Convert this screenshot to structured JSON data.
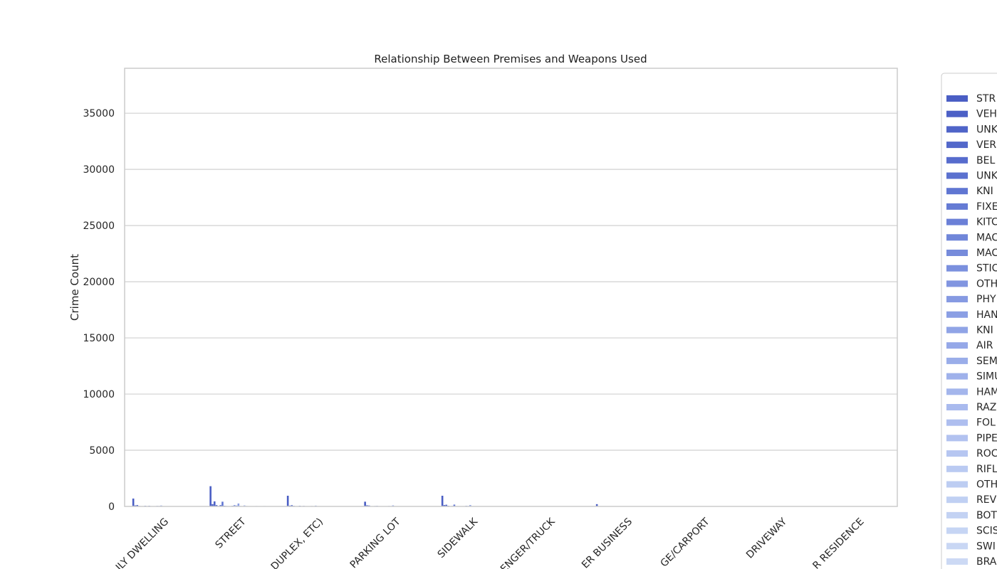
{
  "chart_data": {
    "type": "bar",
    "title": "Relationship Between Premises and Weapons Used",
    "xlabel": "",
    "ylabel": "Crime Count",
    "ylim": [
      0,
      39000
    ],
    "yticks": [
      0,
      5000,
      10000,
      15000,
      20000,
      25000,
      30000,
      35000
    ],
    "grid": true,
    "legend_placement": "right, clipped at page edge",
    "categories": [
      "ILY DWELLING",
      "STREET",
      "DUPLEX, ETC)",
      "PARKING LOT",
      "SIDEWALK",
      "ENGER/TRUCK",
      "ER BUSINESS",
      "GE/CARPORT",
      "DRIVEWAY",
      "R RESIDENCE"
    ],
    "series": [
      {
        "name": "STR",
        "color": "#4a5ec4",
        "values": [
          700,
          1800,
          950,
          420,
          950,
          30,
          200,
          20,
          15,
          15
        ]
      },
      {
        "name": "VEH",
        "color": "#4c60c6",
        "values": [
          90,
          200,
          70,
          100,
          120,
          20,
          20,
          5,
          10,
          5
        ]
      },
      {
        "name": "UNK",
        "color": "#4f64c8",
        "values": [
          120,
          450,
          110,
          80,
          150,
          15,
          20,
          5,
          5,
          5
        ]
      },
      {
        "name": "VER",
        "color": "#5368ca",
        "values": [
          40,
          120,
          50,
          30,
          60,
          10,
          10,
          5,
          5,
          5
        ]
      },
      {
        "name": "BEL",
        "color": "#576ccd",
        "values": [
          20,
          40,
          15,
          10,
          15,
          5,
          5,
          2,
          2,
          2
        ]
      },
      {
        "name": "UNK",
        "color": "#5b71cf",
        "values": [
          30,
          120,
          30,
          40,
          40,
          10,
          10,
          3,
          3,
          3
        ]
      },
      {
        "name": "KNI",
        "color": "#6076d2",
        "values": [
          60,
          420,
          60,
          50,
          160,
          10,
          20,
          5,
          5,
          5
        ]
      },
      {
        "name": "FIXE",
        "color": "#657bd4",
        "values": [
          20,
          60,
          20,
          15,
          30,
          5,
          5,
          2,
          2,
          2
        ]
      },
      {
        "name": "KITC",
        "color": "#6b80d7",
        "values": [
          60,
          40,
          50,
          10,
          20,
          3,
          5,
          2,
          2,
          3
        ]
      },
      {
        "name": "MAC",
        "color": "#7086d9",
        "values": [
          10,
          30,
          10,
          10,
          10,
          3,
          3,
          1,
          1,
          1
        ]
      },
      {
        "name": "MAC",
        "color": "#768bdb",
        "values": [
          10,
          20,
          10,
          5,
          10,
          2,
          2,
          1,
          1,
          1
        ]
      },
      {
        "name": "STIC",
        "color": "#7b90de",
        "values": [
          30,
          60,
          20,
          20,
          30,
          5,
          5,
          2,
          2,
          2
        ]
      },
      {
        "name": "OTH",
        "color": "#8195e0",
        "values": [
          50,
          120,
          40,
          40,
          60,
          10,
          15,
          3,
          3,
          3
        ]
      },
      {
        "name": "PHY",
        "color": "#869ae2",
        "values": [
          40,
          80,
          30,
          30,
          40,
          5,
          10,
          2,
          2,
          2
        ]
      },
      {
        "name": "HAN",
        "color": "#8b9fe4",
        "values": [
          80,
          260,
          70,
          90,
          120,
          20,
          25,
          5,
          5,
          5
        ]
      },
      {
        "name": "KNI",
        "color": "#90a4e6",
        "values": [
          15,
          40,
          15,
          10,
          20,
          3,
          3,
          1,
          1,
          1
        ]
      },
      {
        "name": "AIR",
        "color": "#95a8e8",
        "values": [
          10,
          30,
          10,
          10,
          10,
          3,
          3,
          1,
          1,
          1
        ]
      },
      {
        "name": "SEM",
        "color": "#9aade9",
        "values": [
          20,
          90,
          20,
          30,
          30,
          5,
          10,
          2,
          2,
          2
        ]
      },
      {
        "name": "SIMU",
        "color": "#9fb1eb",
        "values": [
          10,
          40,
          10,
          15,
          15,
          3,
          5,
          1,
          1,
          1
        ]
      },
      {
        "name": "HAM",
        "color": "#a4b6ec",
        "values": [
          10,
          15,
          10,
          5,
          5,
          2,
          2,
          1,
          1,
          1
        ]
      },
      {
        "name": "RAZ",
        "color": "#a9baee",
        "values": [
          5,
          15,
          5,
          3,
          5,
          1,
          1,
          1,
          1,
          1
        ]
      },
      {
        "name": "FOL",
        "color": "#aebeef",
        "values": [
          10,
          30,
          10,
          10,
          15,
          2,
          3,
          1,
          1,
          1
        ]
      },
      {
        "name": "PIPE",
        "color": "#b2c2f0",
        "values": [
          5,
          15,
          5,
          5,
          5,
          1,
          1,
          1,
          1,
          1
        ]
      },
      {
        "name": "ROC",
        "color": "#b6c6f1",
        "values": [
          10,
          40,
          10,
          10,
          20,
          3,
          3,
          1,
          1,
          1
        ]
      },
      {
        "name": "RIFL",
        "color": "#bacaf2",
        "values": [
          5,
          15,
          5,
          5,
          5,
          1,
          1,
          1,
          1,
          1
        ]
      },
      {
        "name": "OTH",
        "color": "#bdcdf2",
        "values": [
          10,
          20,
          10,
          5,
          10,
          2,
          2,
          1,
          1,
          1
        ]
      },
      {
        "name": "REV",
        "color": "#c0d0f3",
        "values": [
          5,
          25,
          5,
          5,
          5,
          1,
          2,
          1,
          1,
          1
        ]
      },
      {
        "name": "BOT",
        "color": "#c3d2f3",
        "values": [
          10,
          40,
          10,
          10,
          20,
          2,
          3,
          1,
          1,
          1
        ]
      },
      {
        "name": "SCIS",
        "color": "#c6d5f4",
        "values": [
          5,
          10,
          5,
          2,
          5,
          1,
          1,
          1,
          1,
          1
        ]
      },
      {
        "name": "SWI",
        "color": "#c9d7f4",
        "values": [
          3,
          10,
          3,
          2,
          3,
          1,
          1,
          1,
          1,
          1
        ]
      },
      {
        "name": "BRA",
        "color": "#ccd9f4",
        "values": [
          3,
          10,
          3,
          2,
          3,
          1,
          1,
          1,
          1,
          1
        ]
      }
    ]
  }
}
